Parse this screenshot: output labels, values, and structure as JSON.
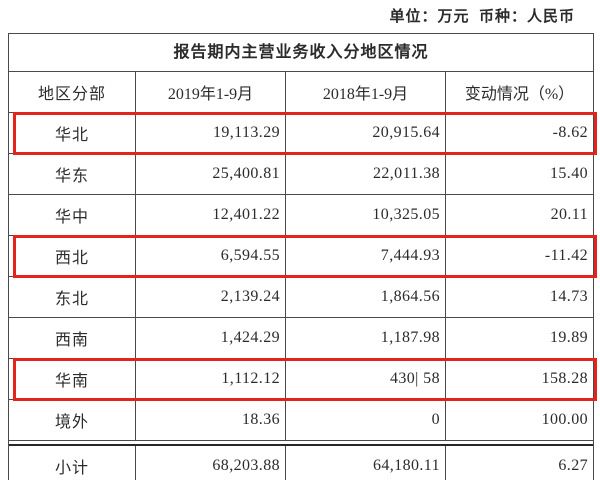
{
  "note": "单位：万元  币种：人民币",
  "table": {
    "title": "报告期内主营业务收入分地区情况",
    "columns": [
      "地区分部",
      "2019年1-9月",
      "2018年1-9月",
      "变动情况（%）"
    ],
    "rows": [
      {
        "region": "华北",
        "v2019": "19,113.29",
        "v2018": "20,915.64",
        "change": "-8.62",
        "highlighted": true,
        "subtotal": false
      },
      {
        "region": "华东",
        "v2019": "25,400.81",
        "v2018": "22,011.38",
        "change": "15.40",
        "highlighted": false,
        "subtotal": false
      },
      {
        "region": "华中",
        "v2019": "12,401.22",
        "v2018": "10,325.05",
        "change": "20.11",
        "highlighted": false,
        "subtotal": false
      },
      {
        "region": "西北",
        "v2019": "6,594.55",
        "v2018": "7,444.93",
        "change": "-11.42",
        "highlighted": true,
        "subtotal": false
      },
      {
        "region": "东北",
        "v2019": "2,139.24",
        "v2018": "1,864.56",
        "change": "14.73",
        "highlighted": false,
        "subtotal": false
      },
      {
        "region": "西南",
        "v2019": "1,424.29",
        "v2018": "1,187.98",
        "change": "19.89",
        "highlighted": false,
        "subtotal": false
      },
      {
        "region": "华南",
        "v2019": "1,112.12",
        "v2018": "430| 58",
        "change": "158.28",
        "highlighted": true,
        "subtotal": false
      },
      {
        "region": "境外",
        "v2019": "18.36",
        "v2018": "0",
        "change": "100.00",
        "highlighted": false,
        "subtotal": false
      },
      {
        "region": "小计",
        "v2019": "68,203.88",
        "v2018": "64,180.11",
        "change": "6.27",
        "highlighted": false,
        "subtotal": true
      }
    ],
    "highlight_color": "#e2241d"
  }
}
